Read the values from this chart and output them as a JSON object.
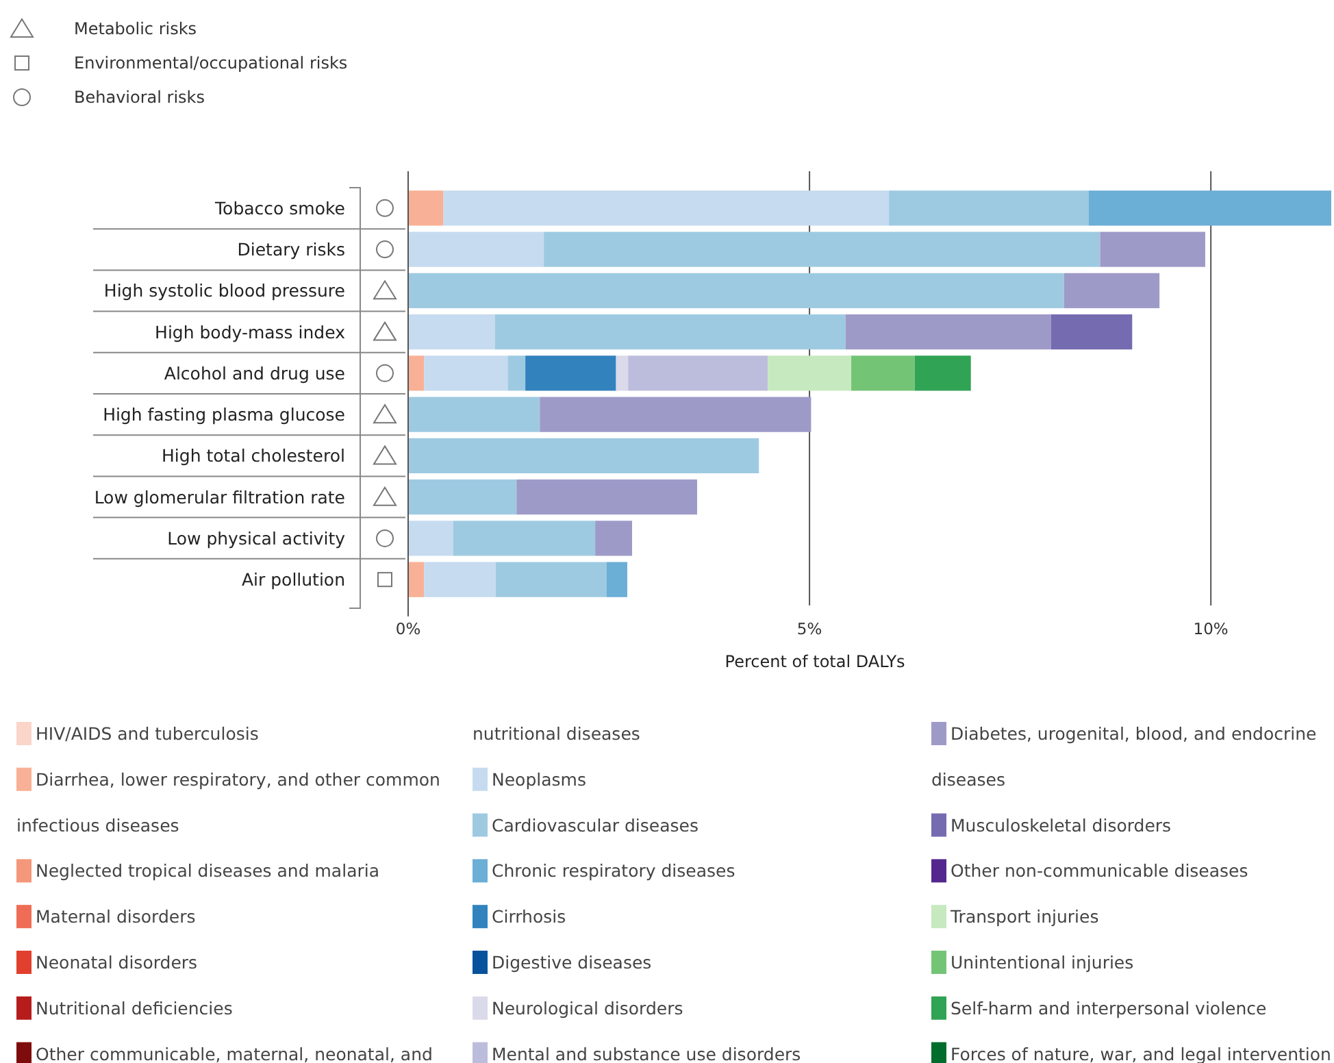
{
  "chart_data": {
    "type": "bar",
    "orientation": "horizontal",
    "stacked": true,
    "xlabel": "Percent of total DALYs",
    "categories": [
      "Tobacco smoke",
      "Dietary risks",
      "High systolic blood pressure",
      "High body-mass index",
      "Alcohol and drug use",
      "High fasting plasma glucose",
      "High total cholesterol",
      "Low glomerular filtration rate",
      "Low physical activity",
      "Air pollution"
    ],
    "xlim": [
      0,
      11.5
    ],
    "xticks": [
      {
        "value": 0,
        "label": "0%"
      },
      {
        "value": 5,
        "label": "5%"
      },
      {
        "value": 10,
        "label": "10%"
      }
    ],
    "grid": "x",
    "legend": "bottom",
    "annotations": [
      "Metabolic risks",
      "Environmental/occupational risks",
      "Behavioral risks"
    ],
    "series": [
      {
        "name": "HIV/AIDS and tuberculosis",
        "color": "#fbd5c9",
        "values": [
          0,
          0,
          0,
          0,
          0,
          0,
          0,
          0,
          0,
          0
        ]
      },
      {
        "name": "Diarrhea, lower respiratory, and other common infectious diseases",
        "color": "#f8b196",
        "values": [
          0.44,
          0,
          0,
          0,
          0.2,
          0,
          0,
          0,
          0,
          0.2
        ]
      },
      {
        "name": "Neglected tropical diseases and malaria",
        "color": "#f4977a",
        "values": [
          0,
          0,
          0,
          0,
          0,
          0,
          0,
          0,
          0,
          0
        ]
      },
      {
        "name": "Maternal disorders",
        "color": "#ef6d54",
        "values": [
          0,
          0,
          0,
          0,
          0,
          0,
          0,
          0,
          0,
          0
        ]
      },
      {
        "name": "Neonatal disorders",
        "color": "#e2402f",
        "values": [
          0,
          0,
          0,
          0,
          0,
          0,
          0,
          0,
          0,
          0
        ]
      },
      {
        "name": "Nutritional deficiencies",
        "color": "#b71c1c",
        "values": [
          0,
          0,
          0,
          0,
          0,
          0,
          0,
          0,
          0,
          0
        ]
      },
      {
        "name": "Other communicable, maternal, neonatal, and nutritional diseases",
        "color": "#7f0c0c",
        "values": [
          0,
          0,
          0,
          0,
          0,
          0,
          0,
          0,
          0,
          0
        ]
      },
      {
        "name": "Neoplasms",
        "color": "#c6dbef",
        "values": [
          5.55,
          1.69,
          0,
          1.08,
          1.04,
          0,
          0,
          0,
          0.56,
          0.89
        ]
      },
      {
        "name": "Cardiovascular diseases",
        "color": "#9ecae1",
        "values": [
          2.49,
          6.93,
          8.17,
          4.37,
          0.22,
          1.64,
          4.37,
          1.35,
          1.77,
          1.38
        ]
      },
      {
        "name": "Chronic respiratory diseases",
        "color": "#6baed6",
        "values": [
          3.02,
          0,
          0,
          0,
          0,
          0,
          0,
          0,
          0,
          0.26
        ]
      },
      {
        "name": "Cirrhosis",
        "color": "#3182bd",
        "values": [
          0,
          0,
          0,
          0,
          1.13,
          0,
          0,
          0,
          0,
          0
        ]
      },
      {
        "name": "Digestive diseases",
        "color": "#08519c",
        "values": [
          0,
          0,
          0,
          0,
          0,
          0,
          0,
          0,
          0,
          0
        ]
      },
      {
        "name": "Neurological disorders",
        "color": "#dadaeb",
        "values": [
          0,
          0,
          0,
          0,
          0.15,
          0,
          0,
          0,
          0,
          0
        ]
      },
      {
        "name": "Mental and substance use disorders",
        "color": "#bcbddc",
        "values": [
          0,
          0,
          0,
          0,
          1.74,
          0,
          0,
          0,
          0,
          0
        ]
      },
      {
        "name": "Diabetes, urogenital, blood, and endocrine diseases",
        "color": "#9e9ac8",
        "values": [
          0,
          1.31,
          1.19,
          2.56,
          0,
          3.38,
          0,
          2.25,
          0.46,
          0
        ]
      },
      {
        "name": "Musculoskeletal disorders",
        "color": "#756bb1",
        "values": [
          0,
          0,
          0,
          1.01,
          0,
          0,
          0,
          0,
          0,
          0
        ]
      },
      {
        "name": "Other non-communicable diseases",
        "color": "#54278f",
        "values": [
          0,
          0,
          0,
          0,
          0,
          0,
          0,
          0,
          0,
          0
        ]
      },
      {
        "name": "Transport injuries",
        "color": "#c7e9c0",
        "values": [
          0,
          0,
          0,
          0,
          1.04,
          0,
          0,
          0,
          0,
          0
        ]
      },
      {
        "name": "Unintentional injuries",
        "color": "#74c476",
        "values": [
          0,
          0,
          0,
          0,
          0.79,
          0,
          0,
          0,
          0,
          0
        ]
      },
      {
        "name": "Self-harm and interpersonal violence",
        "color": "#31a354",
        "values": [
          0,
          0,
          0,
          0,
          0.7,
          0,
          0,
          0,
          0,
          0
        ]
      },
      {
        "name": "Forces of nature, war, and legal intervention",
        "color": "#006d2c",
        "values": [
          0,
          0,
          0,
          0,
          0,
          0,
          0,
          0,
          0,
          0
        ]
      }
    ]
  }
}
